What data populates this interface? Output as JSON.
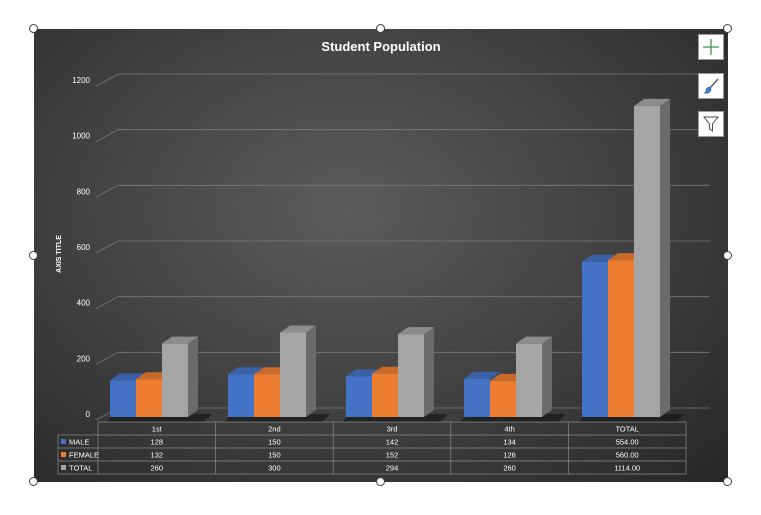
{
  "chart_data": {
    "type": "bar",
    "title": "Student Population",
    "ylabel": "AXIS TITLE",
    "xlabel": "",
    "categories": [
      "1st",
      "2nd",
      "3rd",
      "4th",
      "TOTAL"
    ],
    "series": [
      {
        "name": "MALE",
        "values": [
          128,
          150,
          142,
          134,
          554
        ],
        "labels": [
          "128",
          "150",
          "142",
          "134",
          "554.00"
        ],
        "color": "#4472c4"
      },
      {
        "name": "FEMALE",
        "values": [
          132,
          150,
          152,
          126,
          560
        ],
        "labels": [
          "132",
          "150",
          "152",
          "126",
          "560.00"
        ],
        "color": "#ed7d31"
      },
      {
        "name": "TOTAL",
        "values": [
          260,
          300,
          294,
          260,
          1114
        ],
        "labels": [
          "260",
          "300",
          "294",
          "260",
          "1114.00"
        ],
        "color": "#a5a5a5"
      }
    ],
    "ylim": [
      0,
      1200
    ],
    "yticks": [
      "0",
      "200",
      "400",
      "600",
      "800",
      "1000",
      "1200"
    ],
    "grid": true,
    "legend": "data-table",
    "style": "3d-clustered-column"
  },
  "colors": {
    "background": "#404040",
    "gridline": "#7a7a7a",
    "text": "#ffffff"
  },
  "tools": [
    {
      "icon": "plus-icon"
    },
    {
      "icon": "paintbrush-icon"
    },
    {
      "icon": "filter-icon"
    }
  ]
}
